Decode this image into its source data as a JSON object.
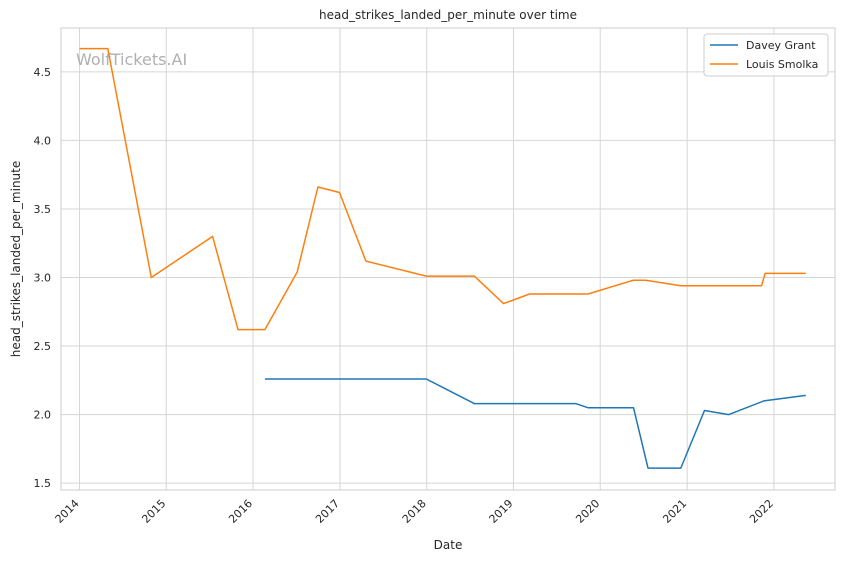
{
  "chart_data": {
    "type": "line",
    "title": "head_strikes_landed_per_minute over time",
    "xlabel": "Date",
    "ylabel": "head_strikes_landed_per_minute",
    "watermark": "WolfTickets.AI",
    "x_ticks": [
      "2014",
      "2015",
      "2016",
      "2017",
      "2018",
      "2019",
      "2020",
      "2021",
      "2022"
    ],
    "y_ticks": [
      "1.5",
      "2.0",
      "2.5",
      "3.0",
      "3.5",
      "4.0",
      "4.5"
    ],
    "ylim": [
      1.45,
      4.82
    ],
    "xlim": [
      "2013-10-15",
      "2022-09-15"
    ],
    "grid": true,
    "legend_position": "top-right",
    "series": [
      {
        "name": "Davey Grant",
        "color": "#1f77b4",
        "points": [
          [
            "2016-02-20",
            2.26
          ],
          [
            "2016-12-01",
            2.26
          ],
          [
            "2017-12-30",
            2.26
          ],
          [
            "2018-07-20",
            2.08
          ],
          [
            "2019-07-01",
            2.08
          ],
          [
            "2019-09-20",
            2.08
          ],
          [
            "2019-11-10",
            2.05
          ],
          [
            "2020-05-20",
            2.05
          ],
          [
            "2020-07-20",
            1.61
          ],
          [
            "2020-12-05",
            1.61
          ],
          [
            "2021-03-15",
            2.03
          ],
          [
            "2021-06-25",
            2.0
          ],
          [
            "2021-11-20",
            2.1
          ],
          [
            "2022-05-15",
            2.14
          ]
        ]
      },
      {
        "name": "Louis Smolka",
        "color": "#ff7f0e",
        "points": [
          [
            "2014-01-01",
            4.67
          ],
          [
            "2014-04-30",
            4.67
          ],
          [
            "2014-10-30",
            3.0
          ],
          [
            "2015-07-15",
            3.3
          ],
          [
            "2015-10-30",
            2.62
          ],
          [
            "2016-02-20",
            2.62
          ],
          [
            "2016-07-05",
            3.04
          ],
          [
            "2016-09-30",
            3.66
          ],
          [
            "2016-12-30",
            3.62
          ],
          [
            "2017-04-20",
            3.12
          ],
          [
            "2017-12-30",
            3.01
          ],
          [
            "2018-07-20",
            3.01
          ],
          [
            "2018-11-20",
            2.81
          ],
          [
            "2019-03-10",
            2.88
          ],
          [
            "2019-11-10",
            2.88
          ],
          [
            "2020-05-20",
            2.98
          ],
          [
            "2020-07-10",
            2.98
          ],
          [
            "2020-12-05",
            2.94
          ],
          [
            "2021-11-10",
            2.94
          ],
          [
            "2021-11-25",
            3.03
          ],
          [
            "2022-05-15",
            3.03
          ]
        ]
      }
    ]
  }
}
